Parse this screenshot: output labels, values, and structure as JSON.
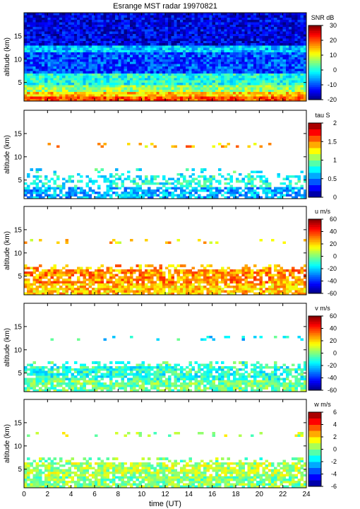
{
  "figure": {
    "title": "Esrange MST radar 19970821",
    "xlabel": "time (UT)",
    "xticks": [
      0,
      2,
      4,
      6,
      8,
      10,
      12,
      14,
      16,
      18,
      20,
      22,
      24
    ]
  },
  "chart_data": [
    {
      "type": "heatmap",
      "id": "snr",
      "ylabel": "altitude (km)",
      "colorbar_label": "SNR dB",
      "xlim": [
        0,
        24
      ],
      "ylim": [
        1,
        20
      ],
      "yticks": [
        5,
        10,
        15
      ],
      "clim": [
        -20,
        30
      ],
      "cbticks": [
        -20,
        -10,
        0,
        10,
        20,
        30
      ],
      "colormap": "jet",
      "layers": [
        {
          "alt": [
            1,
            2.2
          ],
          "value": 20,
          "coverage": 1.0
        },
        {
          "alt": [
            2.2,
            3.2
          ],
          "value": 14,
          "coverage": 1.0
        },
        {
          "alt": [
            3.2,
            4.5
          ],
          "value": 6,
          "coverage": 1.0
        },
        {
          "alt": [
            4.5,
            7
          ],
          "value": 0,
          "coverage": 1.0
        },
        {
          "alt": [
            7,
            11.5
          ],
          "value": -10,
          "coverage": 1.0
        },
        {
          "alt": [
            11.5,
            12.8
          ],
          "value": -4,
          "coverage": 1.0
        },
        {
          "alt": [
            12.8,
            20
          ],
          "value": -15,
          "coverage": 1.0
        }
      ]
    },
    {
      "type": "heatmap",
      "id": "tau",
      "ylabel": "altitude (km)",
      "colorbar_label": "tau S",
      "xlim": [
        0,
        24
      ],
      "ylim": [
        1,
        20
      ],
      "yticks": [
        5,
        10,
        15
      ],
      "clim": [
        0,
        2
      ],
      "cbticks": [
        0,
        0.5,
        1,
        1.5,
        2
      ],
      "colormap": "jet",
      "layers": [
        {
          "alt": [
            1,
            3.5
          ],
          "value": 0.6,
          "coverage": 0.75
        },
        {
          "alt": [
            3.5,
            6
          ],
          "value": 0.8,
          "coverage": 0.45
        },
        {
          "alt": [
            6,
            7.5
          ],
          "value": 0.8,
          "coverage": 0.15
        },
        {
          "alt": [
            11.8,
            12.8
          ],
          "value": 1.4,
          "coverage": 0.12
        }
      ]
    },
    {
      "type": "heatmap",
      "id": "u",
      "ylabel": "altitude (km)",
      "colorbar_label": "u m/s",
      "xlim": [
        0,
        24
      ],
      "ylim": [
        1,
        20
      ],
      "yticks": [
        5,
        10,
        15
      ],
      "clim": [
        -60,
        60
      ],
      "cbticks": [
        -60,
        -40,
        -20,
        0,
        20,
        40,
        60
      ],
      "colormap": "jet",
      "layers": [
        {
          "alt": [
            1,
            3.5
          ],
          "value": 22,
          "coverage": 0.85
        },
        {
          "alt": [
            3.5,
            6.5
          ],
          "value": 28,
          "coverage": 0.8
        },
        {
          "alt": [
            6.5,
            7.5
          ],
          "value": 25,
          "coverage": 0.3
        },
        {
          "alt": [
            11.8,
            12.8
          ],
          "value": 20,
          "coverage": 0.12
        }
      ]
    },
    {
      "type": "heatmap",
      "id": "v",
      "ylabel": "altitude (km)",
      "colorbar_label": "v m/s",
      "xlim": [
        0,
        24
      ],
      "ylim": [
        1,
        20
      ],
      "yticks": [
        5,
        10,
        15
      ],
      "clim": [
        -60,
        60
      ],
      "cbticks": [
        -60,
        -40,
        -20,
        0,
        20,
        40,
        60
      ],
      "colormap": "jet",
      "layers": [
        {
          "alt": [
            1,
            3.5
          ],
          "value": -2,
          "coverage": 0.85
        },
        {
          "alt": [
            3.5,
            6.5
          ],
          "value": -10,
          "coverage": 0.8
        },
        {
          "alt": [
            6.5,
            7.5
          ],
          "value": -8,
          "coverage": 0.3
        },
        {
          "alt": [
            11.8,
            12.8
          ],
          "value": -15,
          "coverage": 0.12
        }
      ]
    },
    {
      "type": "heatmap",
      "id": "w",
      "ylabel": "altitude (km)",
      "colorbar_label": "w m/s",
      "xlim": [
        0,
        24
      ],
      "ylim": [
        1,
        20
      ],
      "yticks": [
        5,
        10,
        15
      ],
      "clim": [
        -6,
        6
      ],
      "cbticks": [
        -6,
        -4,
        -2,
        0,
        2,
        4,
        6
      ],
      "colormap": "jet",
      "layers": [
        {
          "alt": [
            1,
            3.5
          ],
          "value": 0,
          "coverage": 0.85
        },
        {
          "alt": [
            3.5,
            6.5
          ],
          "value": 0.5,
          "coverage": 0.8
        },
        {
          "alt": [
            6.5,
            7.5
          ],
          "value": 0,
          "coverage": 0.3
        },
        {
          "alt": [
            11.8,
            12.8
          ],
          "value": 0.5,
          "coverage": 0.12
        }
      ]
    }
  ]
}
